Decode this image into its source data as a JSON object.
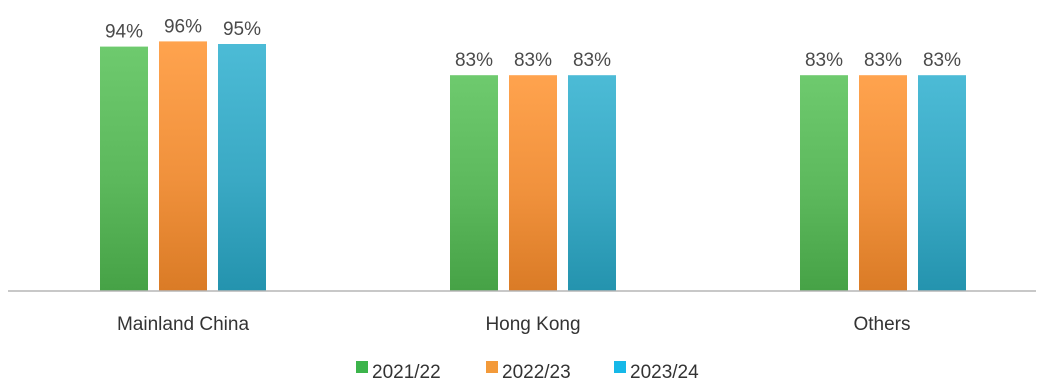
{
  "chart_data": {
    "type": "bar",
    "title": "",
    "xlabel": "",
    "ylabel": "",
    "categories": [
      "Mainland China",
      "Hong Kong",
      "Others"
    ],
    "series": [
      {
        "name": "2021/22",
        "values": [
          94,
          83,
          83
        ],
        "labels": [
          "94%",
          "83%",
          "83%"
        ],
        "color": "#5cb85c"
      },
      {
        "name": "2022/23",
        "values": [
          96,
          83,
          83
        ],
        "labels": [
          "96%",
          "83%",
          "83%"
        ],
        "color": "#f0913c"
      },
      {
        "name": "2023/24",
        "values": [
          95,
          83,
          83
        ],
        "labels": [
          "95%",
          "83%",
          "83%"
        ],
        "color": "#3aa9c4"
      }
    ],
    "legend_swatch_colors": [
      "#3cb44b",
      "#f39a3a",
      "#16b8e8"
    ],
    "ylim": [
      0,
      100
    ],
    "grid": false,
    "legend_position": "bottom-center",
    "value_format": "percent"
  }
}
